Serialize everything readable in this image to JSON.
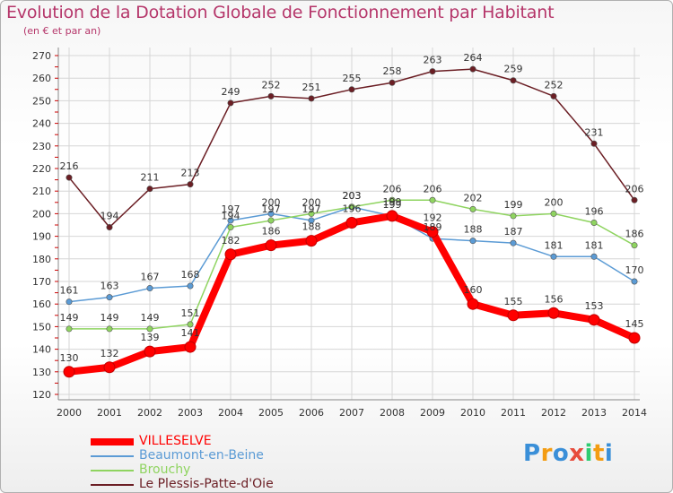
{
  "chart_data": {
    "type": "line",
    "title": "Evolution de la Dotation Globale de Fonctionnement par Habitant",
    "subtitle": "(en € et par an)",
    "xlabel": "",
    "ylabel": "",
    "ylim": [
      120,
      270
    ],
    "yticks": [
      120,
      130,
      140,
      150,
      160,
      170,
      180,
      190,
      200,
      210,
      220,
      230,
      240,
      250,
      260,
      270
    ],
    "categories": [
      "2000",
      "2001",
      "2002",
      "2003",
      "2004",
      "2005",
      "2006",
      "2007",
      "2008",
      "2009",
      "2010",
      "2011",
      "2012",
      "2013",
      "2014"
    ],
    "grid": true,
    "legend_position": "bottom-left",
    "series": [
      {
        "name": "Le Plessis-Patte-d'Oie",
        "color": "#6b1e24",
        "values": [
          216,
          194,
          211,
          213,
          249,
          252,
          251,
          255,
          258,
          263,
          264,
          259,
          252,
          231,
          206
        ]
      },
      {
        "name": "Beaumont-en-Beine",
        "color": "#5b9bd5",
        "values": [
          161,
          163,
          167,
          168,
          197,
          200,
          197,
          203,
          199,
          189,
          188,
          187,
          181,
          181,
          170
        ]
      },
      {
        "name": "Brouchy",
        "color": "#8fd460",
        "values": [
          149,
          149,
          149,
          151,
          194,
          197,
          200,
          203,
          206,
          206,
          202,
          199,
          200,
          196,
          186
        ]
      },
      {
        "name": "VILLESELVE",
        "color": "#ff0000",
        "values": [
          130,
          132,
          139,
          141,
          182,
          186,
          188,
          196,
          199,
          192,
          160,
          155,
          156,
          153,
          145
        ]
      }
    ]
  },
  "legend": [
    {
      "label": "VILLESELVE",
      "color": "#ff0000"
    },
    {
      "label": "Beaumont-en-Beine",
      "color": "#5b9bd5"
    },
    {
      "label": "Brouchy",
      "color": "#8fd460"
    },
    {
      "label": "Le Plessis-Patte-d'Oie",
      "color": "#6b1e24"
    }
  ],
  "logo": {
    "text": "Proxiti",
    "letters": [
      {
        "ch": "P",
        "color": "#3a8fd8"
      },
      {
        "ch": "r",
        "color": "#f39c12"
      },
      {
        "ch": "o",
        "color": "#3a8fd8"
      },
      {
        "ch": "x",
        "color": "#e74c3c"
      },
      {
        "ch": "i",
        "color": "#2ecc71"
      },
      {
        "ch": "t",
        "color": "#f39c12"
      },
      {
        "ch": "i",
        "color": "#3a8fd8"
      }
    ]
  }
}
